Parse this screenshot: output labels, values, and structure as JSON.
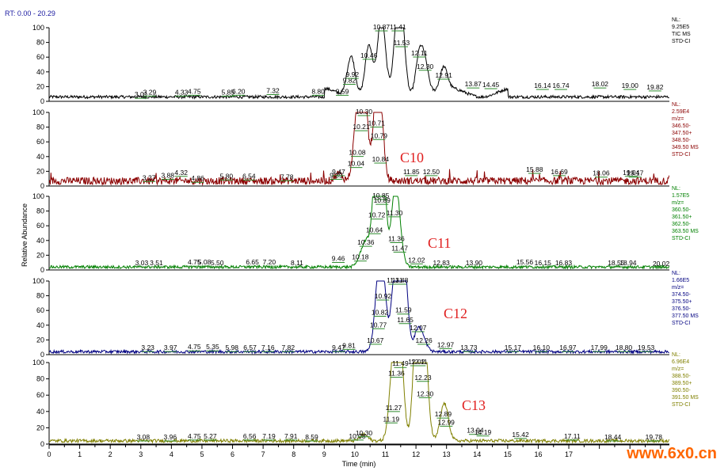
{
  "header": {
    "rt_range": "RT: 0.00 - 20.29"
  },
  "watermark": {
    "brand": "www.6x0.cn",
    "brand_color": "#ff6600"
  },
  "chart_data": {
    "type": "line",
    "xlabel": "Time (min)",
    "ylabel": "Relative Abundance",
    "xlim": [
      0,
      20.29
    ],
    "ylim": [
      0,
      100
    ],
    "x_ticks": [
      0,
      1,
      2,
      3,
      4,
      5,
      6,
      7,
      8,
      9,
      10,
      11,
      12,
      13,
      14,
      15,
      16,
      17
    ],
    "y_ticks": [
      0,
      20,
      40,
      60,
      80,
      100
    ],
    "grid": false,
    "panels": [
      {
        "label": "",
        "color": "#000000",
        "info": [
          "NL:",
          "9.25E5",
          "TIC MS",
          "STD-CI"
        ],
        "peaks": [
          [
            10.87,
            100
          ],
          [
            11.41,
            95
          ],
          [
            10.46,
            65
          ],
          [
            11.53,
            75
          ],
          [
            12.11,
            55
          ],
          [
            9.92,
            35
          ],
          [
            9.82,
            25
          ],
          [
            12.3,
            38
          ],
          [
            12.91,
            30
          ]
        ],
        "labels": [
          [
            3.01,
            2
          ],
          [
            3.29,
            5
          ],
          [
            4.33,
            5
          ],
          [
            4.75,
            6
          ],
          [
            5.85,
            5
          ],
          [
            6.2,
            6
          ],
          [
            7.32,
            7
          ],
          [
            8.8,
            6
          ],
          [
            9.59,
            6
          ],
          [
            9.82,
            21
          ],
          [
            9.92,
            29
          ],
          [
            10.46,
            55
          ],
          [
            10.87,
            97
          ],
          [
            11.41,
            95
          ],
          [
            11.53,
            72
          ],
          [
            12.11,
            58
          ],
          [
            12.3,
            40
          ],
          [
            12.91,
            28
          ],
          [
            13.87,
            16
          ],
          [
            14.45,
            15
          ],
          [
            16.14,
            14
          ],
          [
            16.74,
            14
          ],
          [
            18.02,
            16
          ],
          [
            19.0,
            14
          ],
          [
            19.82,
            12
          ]
        ]
      },
      {
        "label": "C10",
        "color": "#8b0000",
        "info": [
          "NL:",
          "2.59E4",
          "m/z=",
          "346.50-",
          "347.50+",
          "348.50-",
          "349.50 MS",
          "STD-CI"
        ],
        "peaks": [
          [
            10.3,
            100
          ],
          [
            10.21,
            70
          ],
          [
            10.71,
            80
          ],
          [
            10.79,
            62
          ],
          [
            10.08,
            42
          ],
          [
            10.04,
            25
          ],
          [
            10.84,
            28
          ],
          [
            9.47,
            10
          ]
        ],
        "labels": [
          [
            3.27,
            4
          ],
          [
            3.88,
            7
          ],
          [
            4.32,
            11
          ],
          [
            4.86,
            3
          ],
          [
            5.8,
            6
          ],
          [
            6.54,
            6
          ],
          [
            7.78,
            5
          ],
          [
            9.39,
            7
          ],
          [
            9.47,
            12
          ],
          [
            10.04,
            23
          ],
          [
            10.08,
            38
          ],
          [
            10.21,
            73
          ],
          [
            10.3,
            98
          ],
          [
            10.71,
            78
          ],
          [
            10.79,
            61
          ],
          [
            10.84,
            29
          ],
          [
            11.85,
            12
          ],
          [
            12.5,
            12
          ],
          [
            15.88,
            15
          ],
          [
            16.69,
            12
          ],
          [
            18.06,
            10
          ],
          [
            19.04,
            11
          ],
          [
            19.17,
            10
          ]
        ]
      },
      {
        "label": "C11",
        "color": "#008000",
        "info": [
          "NL:",
          "1.57E5",
          "m/z=",
          "360.50-",
          "361.50+",
          "362.50-",
          "363.50 MS",
          "STD-CI"
        ],
        "peaks": [
          [
            10.85,
            100
          ],
          [
            10.89,
            88
          ],
          [
            11.3,
            72
          ],
          [
            10.72,
            66
          ],
          [
            10.64,
            48
          ],
          [
            10.36,
            30
          ],
          [
            10.18,
            10
          ],
          [
            11.36,
            35
          ],
          [
            11.47,
            22
          ]
        ],
        "labels": [
          [
            3.03,
            2
          ],
          [
            3.51,
            2
          ],
          [
            4.75,
            3
          ],
          [
            5.08,
            3
          ],
          [
            5.5,
            2
          ],
          [
            6.65,
            3
          ],
          [
            7.2,
            3
          ],
          [
            8.11,
            2
          ],
          [
            9.46,
            8
          ],
          [
            10.18,
            10
          ],
          [
            10.36,
            30
          ],
          [
            10.64,
            47
          ],
          [
            10.72,
            67
          ],
          [
            10.85,
            98
          ],
          [
            10.89,
            87
          ],
          [
            11.3,
            70
          ],
          [
            11.36,
            35
          ],
          [
            11.47,
            22
          ],
          [
            12.02,
            6
          ],
          [
            12.83,
            2
          ],
          [
            13.9,
            2
          ],
          [
            15.56,
            3
          ],
          [
            16.15,
            2
          ],
          [
            16.83,
            2
          ],
          [
            18.55,
            2
          ],
          [
            18.94,
            2
          ],
          [
            20.02,
            1
          ]
        ]
      },
      {
        "label": "C12",
        "color": "#000080",
        "info": [
          "NL:",
          "1.66E5",
          "m/z=",
          "374.50-",
          "375.50+",
          "376.50-",
          "377.50 MS",
          "STD-CI"
        ],
        "peaks": [
          [
            11.48,
            100
          ],
          [
            11.31,
            90
          ],
          [
            10.92,
            72
          ],
          [
            10.82,
            52
          ],
          [
            11.59,
            55
          ],
          [
            11.65,
            40
          ],
          [
            10.77,
            35
          ],
          [
            10.67,
            12
          ],
          [
            12.07,
            30
          ],
          [
            12.26,
            12
          ]
        ],
        "labels": [
          [
            3.23,
            2
          ],
          [
            3.97,
            2
          ],
          [
            4.75,
            3
          ],
          [
            5.35,
            3
          ],
          [
            5.98,
            2
          ],
          [
            6.57,
            2
          ],
          [
            7.16,
            2
          ],
          [
            7.82,
            2
          ],
          [
            9.47,
            2
          ],
          [
            9.81,
            5
          ],
          [
            10.67,
            12
          ],
          [
            10.77,
            33
          ],
          [
            10.82,
            50
          ],
          [
            10.92,
            72
          ],
          [
            11.31,
            97
          ],
          [
            11.48,
            98
          ],
          [
            11.59,
            53
          ],
          [
            11.65,
            40
          ],
          [
            12.07,
            29
          ],
          [
            12.26,
            12
          ],
          [
            12.97,
            6
          ],
          [
            13.73,
            2
          ],
          [
            15.17,
            2
          ],
          [
            16.1,
            2
          ],
          [
            16.97,
            2
          ],
          [
            17.99,
            2
          ],
          [
            18.8,
            2
          ],
          [
            19.53,
            2
          ]
        ]
      },
      {
        "label": "C13",
        "color": "#808000",
        "info": [
          "NL:",
          "6.96E4",
          "m/z=",
          "388.50-",
          "389.50+",
          "390.50-",
          "391.50 MS",
          "STD-CI"
        ],
        "peaks": [
          [
            12.02,
            100
          ],
          [
            12.11,
            95
          ],
          [
            11.49,
            90
          ],
          [
            11.36,
            82
          ],
          [
            12.23,
            78
          ],
          [
            12.3,
            52
          ],
          [
            11.27,
            40
          ],
          [
            11.19,
            25
          ],
          [
            12.89,
            30
          ],
          [
            12.99,
            20
          ],
          [
            10.3,
            8
          ]
        ],
        "labels": [
          [
            3.08,
            2
          ],
          [
            3.96,
            2
          ],
          [
            4.75,
            3
          ],
          [
            5.27,
            3
          ],
          [
            6.56,
            3
          ],
          [
            7.19,
            3
          ],
          [
            7.91,
            3
          ],
          [
            8.59,
            2
          ],
          [
            10.08,
            3
          ],
          [
            10.3,
            7
          ],
          [
            11.19,
            24
          ],
          [
            11.27,
            38
          ],
          [
            11.36,
            80
          ],
          [
            11.49,
            92
          ],
          [
            12.02,
            98
          ],
          [
            12.11,
            95
          ],
          [
            12.23,
            75
          ],
          [
            12.3,
            55
          ],
          [
            12.89,
            30
          ],
          [
            12.99,
            20
          ],
          [
            13.94,
            10
          ],
          [
            14.19,
            8
          ],
          [
            15.42,
            5
          ],
          [
            17.11,
            3
          ],
          [
            18.44,
            2
          ],
          [
            19.78,
            2
          ]
        ]
      }
    ]
  }
}
